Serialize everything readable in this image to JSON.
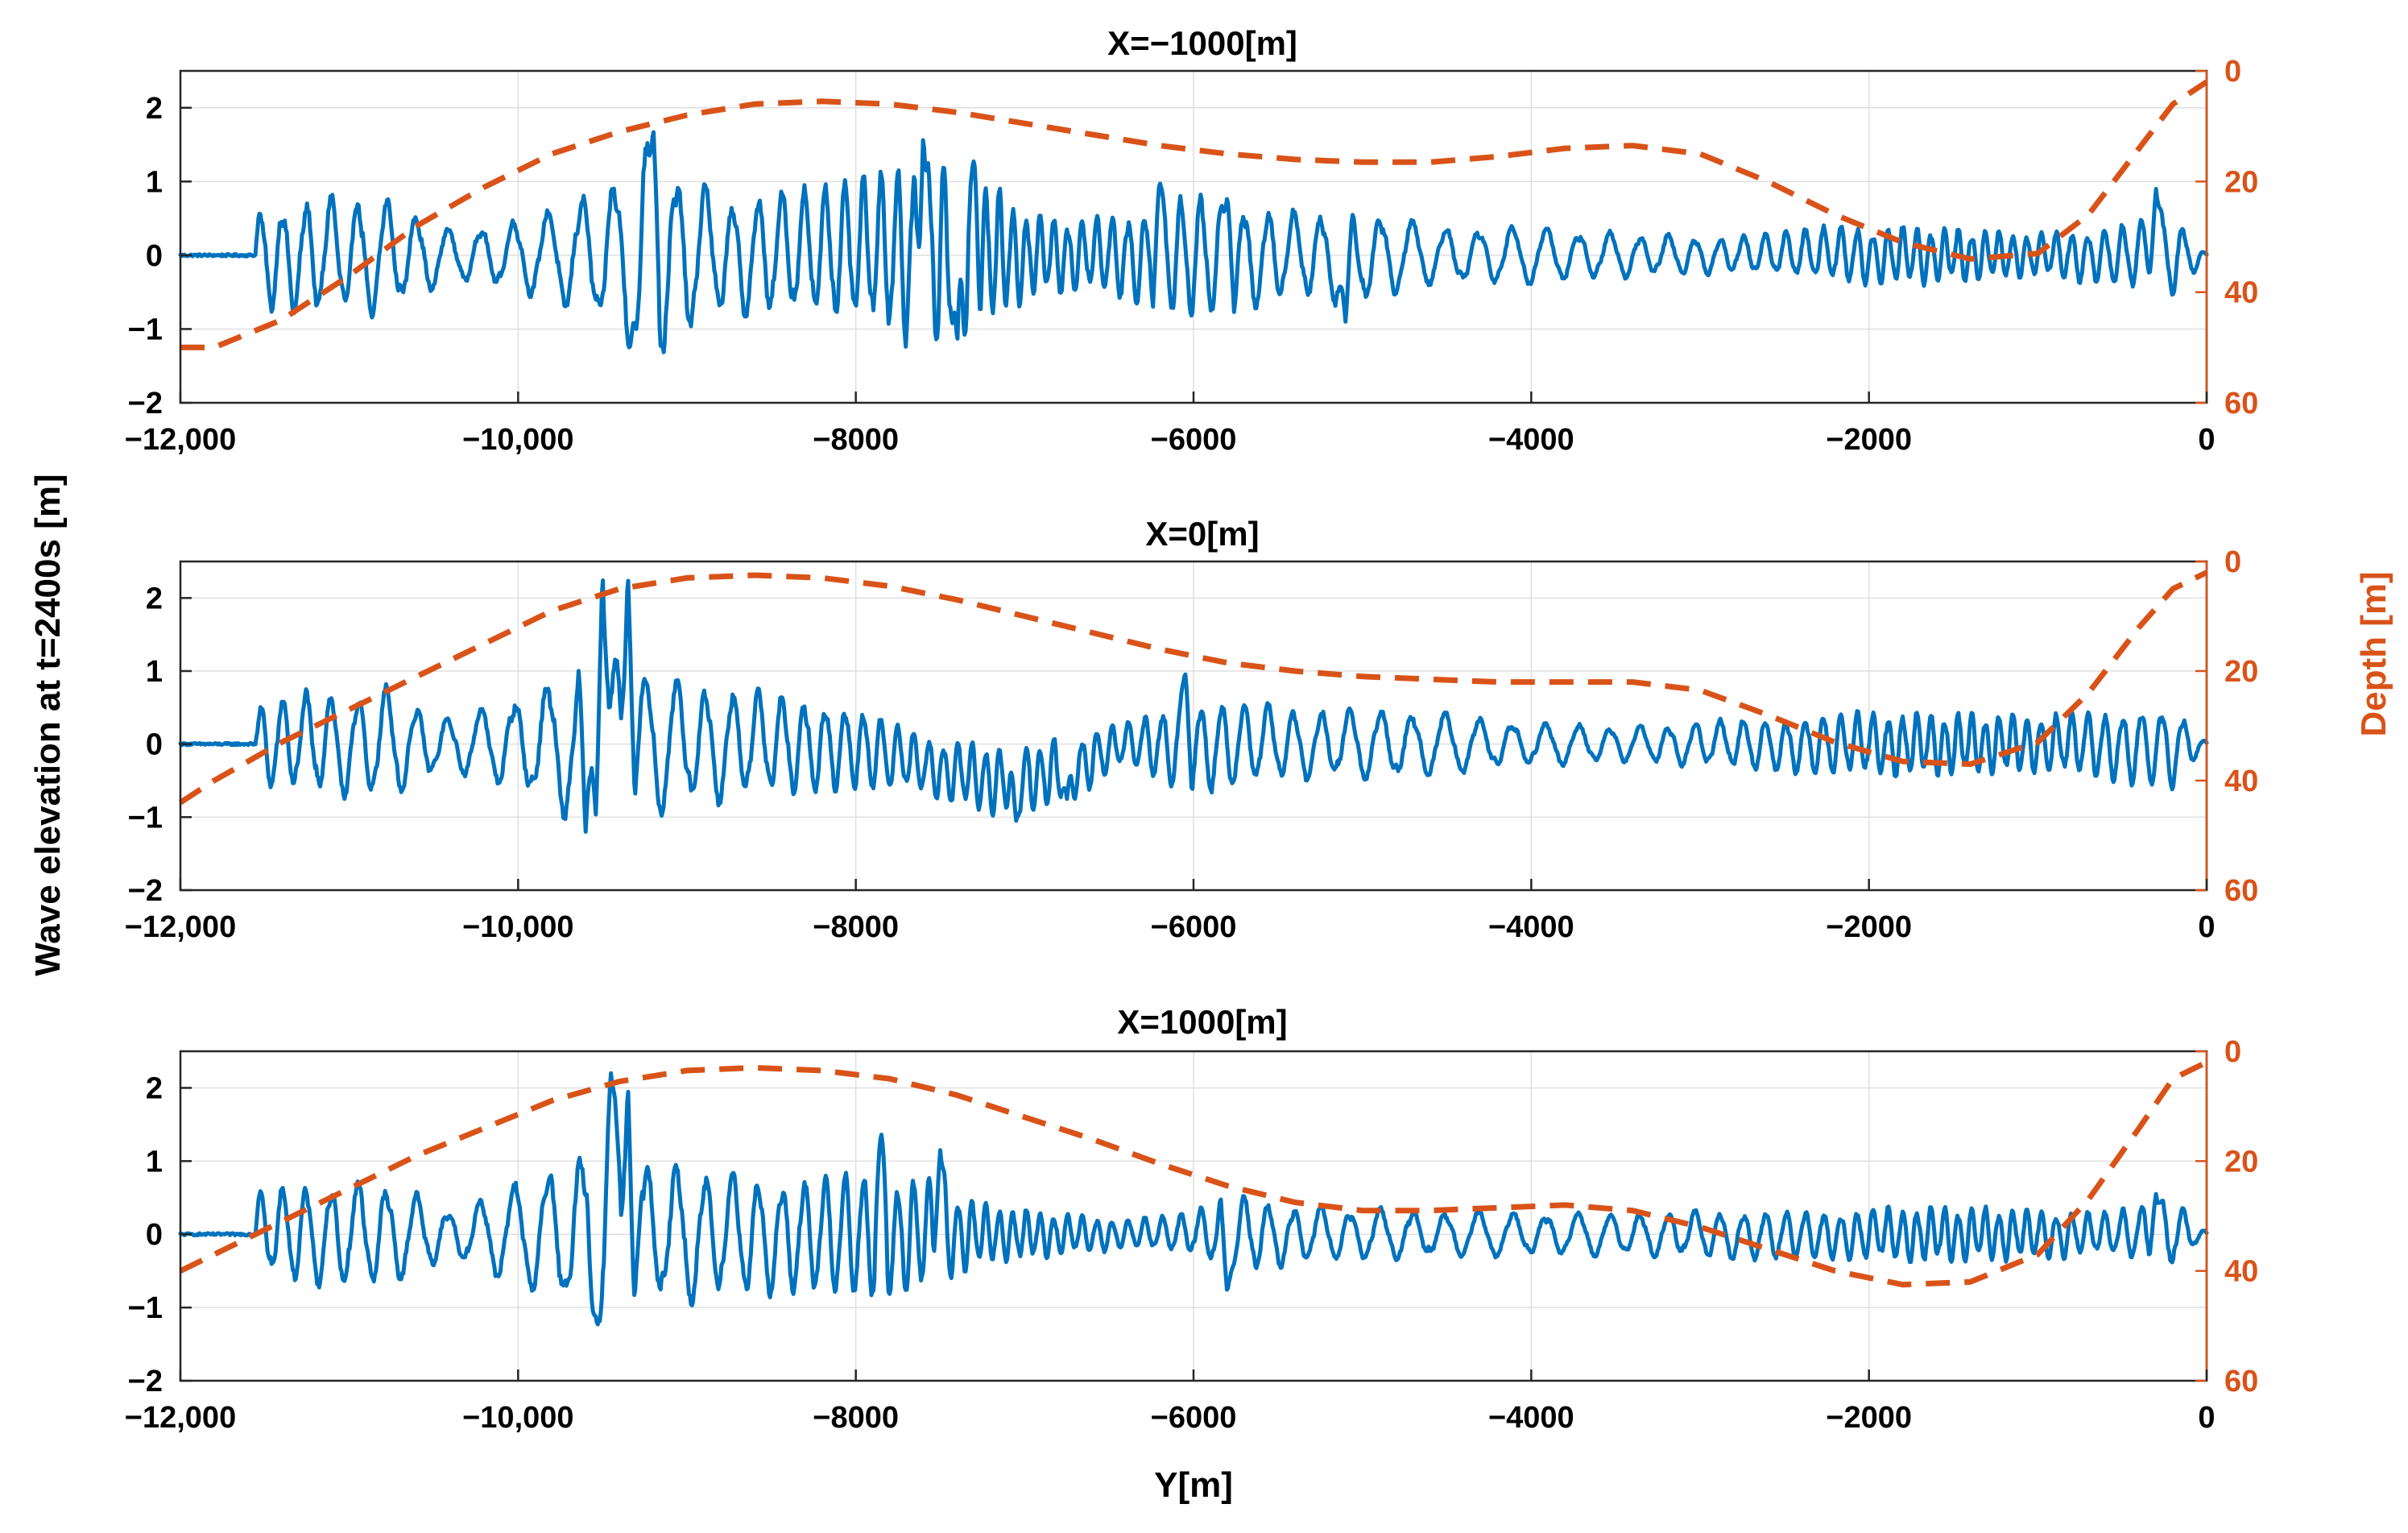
{
  "chart_data": [
    {
      "type": "line",
      "title": "X=−1000[m]",
      "xlim": [
        -12000,
        0
      ],
      "ylim_left": [
        -2,
        2.5
      ],
      "ylim_right": [
        60,
        0
      ],
      "x_ticks": [
        "−12,000",
        "−10,000",
        "−8000",
        "−6000",
        "−4000",
        "−2000",
        "0"
      ],
      "y_ticks_left": [
        "−2",
        "−1",
        "0",
        "1",
        "2"
      ],
      "y_ticks_right": [
        "0",
        "20",
        "40",
        "60"
      ],
      "series": [
        {
          "name": "Wave elevation",
          "axis": "left",
          "color": "#0072BD",
          "style": "solid",
          "start_x": -11550,
          "envelope": {
            "x": [
              -12000,
              -11550,
              -11300,
              -10800,
              -10400,
              -9800,
              -9400,
              -9200,
              -8800,
              -8400,
              -8000,
              -7600,
              -7300,
              -7000,
              -6600,
              -6000,
              -5400,
              -5000,
              -4600,
              -4000,
              -3400,
              -2800,
              -2200,
              -1600,
              -1000,
              -600,
              -200,
              0
            ],
            "amp": [
              0.02,
              0.7,
              0.8,
              0.85,
              0.35,
              0.6,
              1.2,
              1.5,
              0.8,
              0.9,
              1.0,
              1.4,
              1.2,
              0.6,
              0.5,
              0.9,
              0.6,
              0.7,
              0.4,
              0.4,
              0.3,
              0.25,
              0.4,
              0.4,
              0.3,
              0.4,
              0.6,
              0.02
            ]
          },
          "peaks": [
            [
              -9200,
              1.75
            ],
            [
              -7600,
              1.7
            ],
            [
              -7300,
              1.3
            ],
            [
              -7400,
              -1.25
            ],
            [
              -9300,
              -1.0
            ],
            [
              -6200,
              1.0
            ],
            [
              -5800,
              0.8
            ],
            [
              -5100,
              -0.9
            ],
            [
              -300,
              0.9
            ]
          ]
        },
        {
          "name": "Depth",
          "axis": "right",
          "color": "#D95319",
          "style": "dashed",
          "x": [
            -12000,
            -11800,
            -11400,
            -11000,
            -10600,
            -10200,
            -9800,
            -9400,
            -9000,
            -8600,
            -8200,
            -7800,
            -7400,
            -7000,
            -6600,
            -6200,
            -5800,
            -5400,
            -5000,
            -4600,
            -4200,
            -3800,
            -3400,
            -3000,
            -2600,
            -2200,
            -1800,
            -1400,
            -1000,
            -700,
            -400,
            -200,
            0
          ],
          "y": [
            50,
            50,
            45,
            37,
            28,
            21,
            15,
            11,
            8,
            6,
            5.5,
            6,
            7.5,
            9.5,
            11.5,
            13.5,
            15,
            16,
            16.5,
            16.5,
            15.5,
            14,
            13.5,
            15,
            20,
            26,
            31,
            34,
            33,
            26,
            14,
            6,
            2
          ]
        }
      ]
    },
    {
      "type": "line",
      "title": "X=0[m]",
      "xlim": [
        -12000,
        0
      ],
      "ylim_left": [
        -2,
        2.5
      ],
      "ylim_right": [
        60,
        0
      ],
      "x_ticks": [
        "−12,000",
        "−10,000",
        "−8000",
        "−6000",
        "−4000",
        "−2000",
        "0"
      ],
      "y_ticks_left": [
        "−2",
        "−1",
        "0",
        "1",
        "2"
      ],
      "y_ticks_right": [
        "0",
        "20",
        "40",
        "60"
      ],
      "series": [
        {
          "name": "Wave elevation",
          "axis": "left",
          "color": "#0072BD",
          "style": "solid",
          "start_x": -11550,
          "envelope": {
            "x": [
              -12000,
              -11550,
              -11300,
              -10800,
              -10400,
              -10000,
              -9600,
              -9400,
              -9200,
              -8800,
              -8400,
              -8000,
              -7600,
              -7200,
              -6800,
              -6400,
              -6000,
              -5400,
              -4800,
              -4000,
              -3400,
              -2800,
              -2200,
              -1600,
              -1000,
              -600,
              -200,
              0
            ],
            "amp": [
              0.02,
              0.6,
              0.7,
              0.8,
              0.35,
              0.7,
              1.2,
              1.4,
              1.0,
              0.8,
              0.7,
              0.6,
              0.4,
              0.5,
              0.5,
              0.3,
              0.7,
              0.5,
              0.5,
              0.3,
              0.25,
              0.35,
              0.45,
              0.45,
              0.4,
              0.5,
              0.6,
              0.02
            ]
          },
          "offset": {
            "x": [
              -8000,
              -7600,
              -7200,
              -6800,
              -6400
            ],
            "dy": [
              0,
              -0.3,
              -0.5,
              -0.4,
              0
            ]
          },
          "peaks": [
            [
              -9500,
              2.4
            ],
            [
              -9350,
              2.4
            ],
            [
              -9600,
              -1.2
            ],
            [
              -6050,
              1.0
            ],
            [
              -7050,
              -1.05
            ],
            [
              -6750,
              -0.75
            ]
          ]
        },
        {
          "name": "Depth",
          "axis": "right",
          "color": "#D95319",
          "style": "dashed",
          "x": [
            -12000,
            -11800,
            -11400,
            -11000,
            -10600,
            -10200,
            -9800,
            -9400,
            -9000,
            -8600,
            -8200,
            -7800,
            -7400,
            -7000,
            -6600,
            -6200,
            -5800,
            -5400,
            -5000,
            -4600,
            -4200,
            -3800,
            -3400,
            -3000,
            -2600,
            -2200,
            -1800,
            -1400,
            -1000,
            -700,
            -400,
            -200,
            0
          ],
          "y": [
            44,
            40,
            33,
            27,
            21,
            15,
            9,
            5,
            3,
            2.5,
            3,
            4.5,
            7,
            10,
            13,
            16,
            18.5,
            20,
            21,
            21.5,
            22,
            22,
            22,
            23.5,
            28,
            33,
            36.5,
            37,
            33,
            24,
            12,
            5,
            2
          ]
        }
      ]
    },
    {
      "type": "line",
      "title": "X=1000[m]",
      "xlim": [
        -12000,
        0
      ],
      "ylim_left": [
        -2,
        2.5
      ],
      "ylim_right": [
        60,
        0
      ],
      "x_ticks": [
        "−12,000",
        "−10,000",
        "−8000",
        "−6000",
        "−4000",
        "−2000",
        "0"
      ],
      "y_ticks_left": [
        "−2",
        "−1",
        "0",
        "1",
        "2"
      ],
      "y_ticks_right": [
        "0",
        "20",
        "40",
        "60"
      ],
      "series": [
        {
          "name": "Wave elevation",
          "axis": "left",
          "color": "#0072BD",
          "style": "solid",
          "start_x": -11550,
          "envelope": {
            "x": [
              -12000,
              -11550,
              -11300,
              -10800,
              -10400,
              -10000,
              -9600,
              -9400,
              -9200,
              -8800,
              -8400,
              -8000,
              -7600,
              -7200,
              -6800,
              -6400,
              -6000,
              -5800,
              -5400,
              -4800,
              -4000,
              -3400,
              -2800,
              -2200,
              -1600,
              -1000,
              -600,
              -200,
              0
            ],
            "amp": [
              0.02,
              0.6,
              0.7,
              0.75,
              0.35,
              0.7,
              1.3,
              1.6,
              1.0,
              0.9,
              0.8,
              0.9,
              0.8,
              0.4,
              0.3,
              0.2,
              0.3,
              0.6,
              0.4,
              0.35,
              0.3,
              0.3,
              0.35,
              0.35,
              0.4,
              0.35,
              0.3,
              0.5,
              0.02
            ]
          },
          "peaks": [
            [
              -9450,
              2.2
            ],
            [
              -9350,
              2.1
            ],
            [
              -9550,
              -1.1
            ],
            [
              -7850,
              1.4
            ],
            [
              -7500,
              1.15
            ],
            [
              -5800,
              -0.8
            ],
            [
              -300,
              0.55
            ]
          ]
        },
        {
          "name": "Depth",
          "axis": "right",
          "color": "#D95319",
          "style": "dashed",
          "x": [
            -12000,
            -11800,
            -11400,
            -11000,
            -10600,
            -10200,
            -9800,
            -9400,
            -9000,
            -8600,
            -8200,
            -7800,
            -7400,
            -7000,
            -6600,
            -6200,
            -5800,
            -5400,
            -5000,
            -4600,
            -4200,
            -3800,
            -3400,
            -3000,
            -2600,
            -2200,
            -1800,
            -1400,
            -1000,
            -700,
            -400,
            -200,
            0
          ],
          "y": [
            40,
            37,
            31,
            25,
            19,
            14,
            9,
            5.5,
            3.5,
            3,
            3.5,
            5,
            8,
            12,
            16,
            20.5,
            24.5,
            27.5,
            29,
            29,
            28.5,
            28,
            29,
            32,
            36,
            40,
            42.5,
            42,
            37,
            27,
            14,
            5,
            2
          ]
        }
      ]
    }
  ],
  "labels": {
    "ylabel_left": "Wave elevation at t=2400s [m]",
    "ylabel_right": "Depth [m]",
    "xlabel": "Y[m]"
  }
}
